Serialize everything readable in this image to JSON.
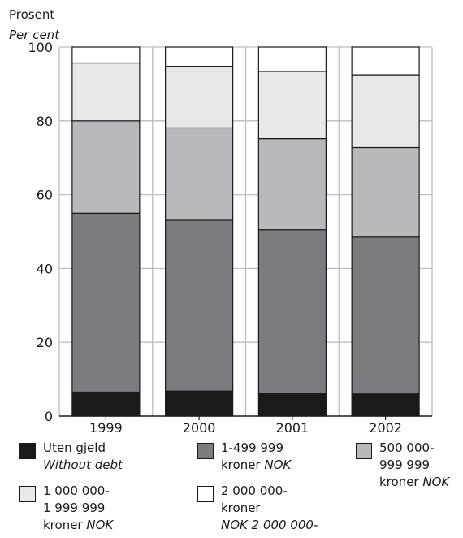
{
  "chart_data": {
    "type": "bar",
    "stacked": true,
    "ylabel_no": "Prosent",
    "ylabel_en": "Per cent",
    "ylim": [
      0,
      100
    ],
    "yticks": [
      0,
      20,
      40,
      60,
      80,
      100
    ],
    "grid": true,
    "categories": [
      "1999",
      "2000",
      "2001",
      "2002"
    ],
    "series": [
      {
        "name": "Uten gjeld Without debt",
        "color": "#1a1a1a",
        "values": [
          6.5,
          6.8,
          6.2,
          6.0
        ]
      },
      {
        "name": "1-499 999 kroner NOK",
        "color": "#7b7c7f",
        "values": [
          48.5,
          46.3,
          44.3,
          42.5
        ]
      },
      {
        "name": "500 000-999 999 kroner NOK",
        "color": "#b8b9bc",
        "values": [
          25.0,
          25.0,
          24.7,
          24.3
        ]
      },
      {
        "name": "1 000 000-1 999 999 kroner NOK",
        "color": "#e8e8e9",
        "values": [
          15.7,
          16.7,
          18.2,
          19.7
        ]
      },
      {
        "name": "2 000 000-kroner NOK 2 000 000-",
        "color": "#ffffff",
        "values": [
          4.3,
          5.2,
          6.6,
          7.5
        ]
      }
    ]
  },
  "legend": [
    {
      "lines": [
        "Uten gjeld"
      ],
      "italic_lines": [
        "Without debt"
      ],
      "inline_italic": ""
    },
    {
      "lines": [
        "1-499 999"
      ],
      "italic_lines": [],
      "last_plain": "kroner",
      "inline_italic": "NOK"
    },
    {
      "lines": [
        "500 000-",
        "999 999"
      ],
      "italic_lines": [],
      "last_plain": "kroner",
      "inline_italic": "NOK"
    },
    {
      "lines": [
        "1 000 000-",
        "1 999 999"
      ],
      "italic_lines": [],
      "last_plain": "kroner",
      "inline_italic": "NOK"
    },
    {
      "lines": [
        "2 000 000-",
        "kroner"
      ],
      "italic_lines": [
        "NOK 2 000 000-"
      ],
      "inline_italic": ""
    }
  ]
}
